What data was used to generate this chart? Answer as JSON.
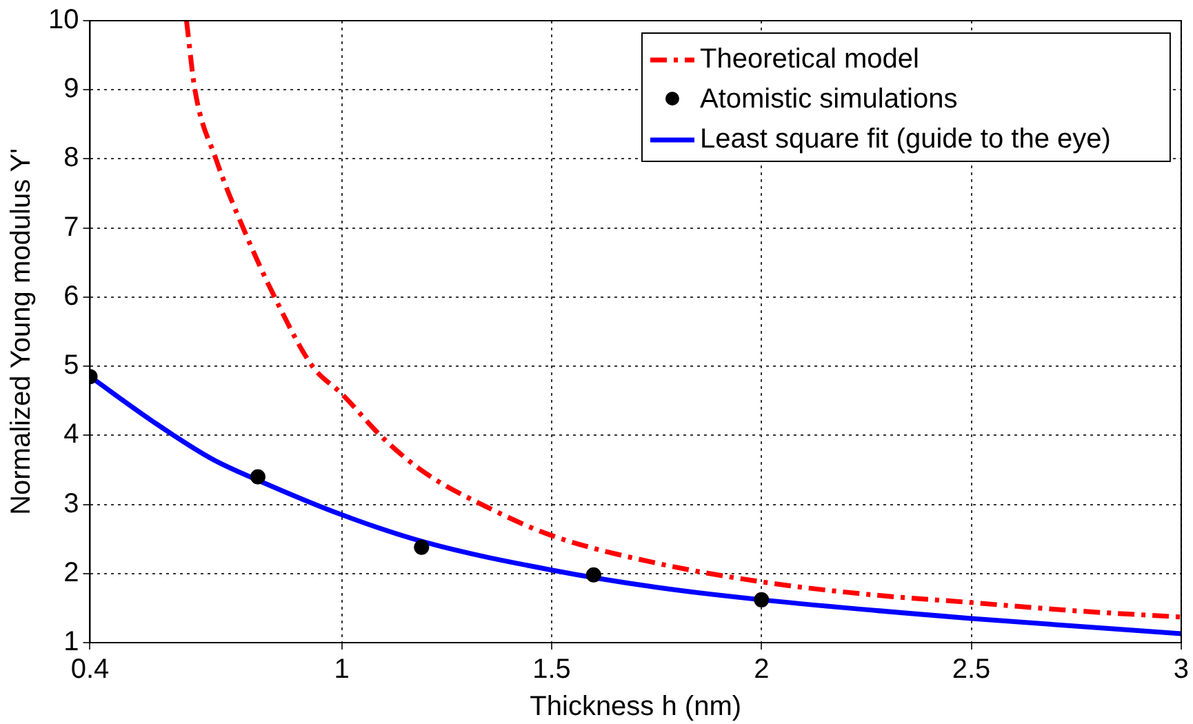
{
  "chart_data": {
    "type": "line",
    "xlabel": "Thickness h (nm)",
    "ylabel": "Normalized Young modulus Y'",
    "xlim": [
      0.4,
      3
    ],
    "xticks": [
      0.4,
      1,
      1.5,
      2,
      2.5,
      3
    ],
    "ylim": [
      1,
      10
    ],
    "yticks": [
      1,
      2,
      3,
      4,
      5,
      6,
      7,
      8,
      9,
      10
    ],
    "grid": true,
    "legend": "top right",
    "series": [
      {
        "name": "Theoretical model",
        "color": "#ff0000",
        "line_style": "dashdot",
        "marker": "none",
        "x": [
          0.63,
          0.65,
          0.7,
          0.765,
          0.84,
          0.93,
          1.0,
          1.1,
          1.2,
          1.35,
          1.5,
          1.75,
          2.0,
          2.25,
          2.5,
          2.75,
          3.0
        ],
        "values": [
          10,
          9,
          8,
          7,
          6,
          5,
          4.6,
          3.95,
          3.45,
          2.95,
          2.55,
          2.15,
          1.88,
          1.7,
          1.58,
          1.46,
          1.37
        ]
      },
      {
        "name": "Atomistic simulations",
        "type": "scatter",
        "color": "#000000",
        "marker": "circle",
        "x": [
          0.4,
          0.8,
          1.19,
          1.6,
          2.0
        ],
        "values": [
          4.85,
          3.4,
          2.38,
          1.98,
          1.62
        ]
      },
      {
        "name": "Least square fit (guide to the eye)",
        "color": "#0000ff",
        "line_style": "solid",
        "marker": "none",
        "x": [
          0.4,
          0.55,
          0.69,
          0.8,
          1.0,
          1.2,
          1.5,
          1.75,
          2.0,
          2.5,
          3.0
        ],
        "values": [
          4.85,
          4.2,
          3.66,
          3.35,
          2.85,
          2.45,
          2.05,
          1.8,
          1.62,
          1.35,
          1.13
        ]
      }
    ]
  }
}
